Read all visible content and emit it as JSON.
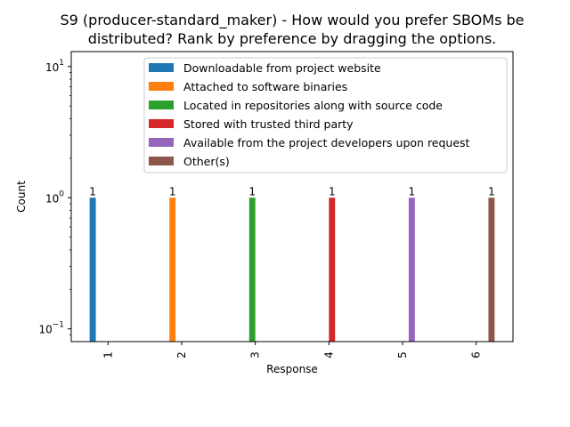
{
  "chart_data": {
    "type": "bar",
    "title": "S9 (producer-standard_maker) - How would you prefer SBOMs be distributed? Rank by preference by dragging the options.",
    "title_lines": [
      "S9 (producer-standard_maker) - How would you prefer SBOMs be",
      "distributed? Rank by preference by dragging the options."
    ],
    "xlabel": "Response",
    "ylabel": "Count",
    "yscale": "log",
    "ylim": [
      0.08,
      13
    ],
    "y_ticks": [
      {
        "value": 0.1,
        "base": "10",
        "exp": "−1"
      },
      {
        "value": 1,
        "base": "10",
        "exp": "0"
      },
      {
        "value": 10,
        "base": "10",
        "exp": "1"
      }
    ],
    "categories": [
      "1",
      "2",
      "3",
      "4",
      "5",
      "6"
    ],
    "legend_position": "upper right",
    "grid": false,
    "series": [
      {
        "name": "Downloadable from project website",
        "color": "#1f77b4",
        "values": [
          1,
          null,
          null,
          null,
          null,
          null
        ],
        "labels": [
          "1",
          "",
          "",
          "",
          "",
          ""
        ]
      },
      {
        "name": "Attached to software binaries",
        "color": "#ff7f0e",
        "values": [
          null,
          1,
          null,
          null,
          null,
          null
        ],
        "labels": [
          "",
          "1",
          "",
          "",
          "",
          ""
        ]
      },
      {
        "name": "Located in repositories along with source code",
        "color": "#2ca02c",
        "values": [
          null,
          null,
          1,
          null,
          null,
          null
        ],
        "labels": [
          "",
          "",
          "1",
          "",
          "",
          ""
        ]
      },
      {
        "name": "Stored with trusted third party",
        "color": "#d62728",
        "values": [
          null,
          null,
          null,
          1,
          null,
          null
        ],
        "labels": [
          "",
          "",
          "",
          "1",
          "",
          ""
        ]
      },
      {
        "name": "Available from the project developers upon request",
        "color": "#9467bd",
        "values": [
          null,
          null,
          null,
          null,
          1,
          null
        ],
        "labels": [
          "",
          "",
          "",
          "",
          "1",
          ""
        ]
      },
      {
        "name": "Other(s)",
        "color": "#8c564b",
        "values": [
          null,
          null,
          null,
          null,
          null,
          1
        ],
        "labels": [
          "",
          "",
          "",
          "",
          "",
          "1"
        ]
      }
    ]
  }
}
